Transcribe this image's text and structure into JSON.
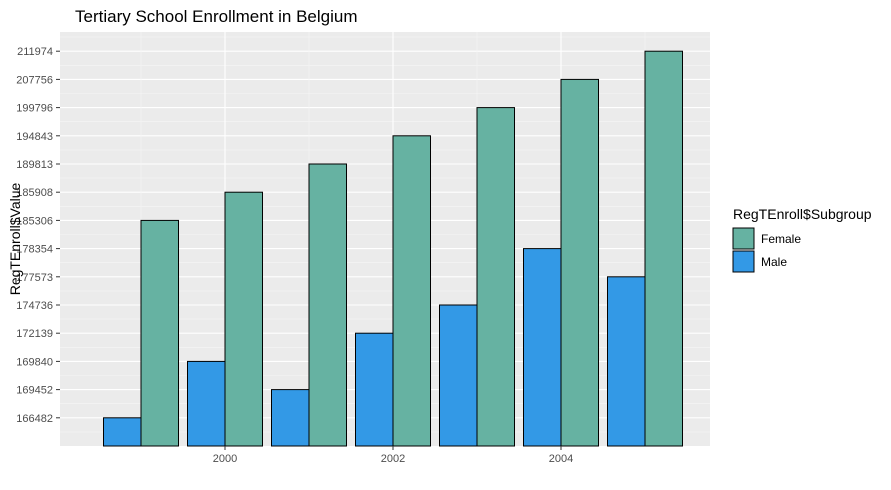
{
  "chart_data": {
    "type": "bar",
    "title": "Tertiary School Enrollment in Belgium",
    "xlabel": "",
    "ylabel": "RegTEnroll$Value",
    "x": [
      1999,
      2000,
      2001,
      2002,
      2003,
      2004,
      2005
    ],
    "x_tick_labels": [
      "2000",
      "2002",
      "2004"
    ],
    "y_tick_labels": [
      "166482",
      "169452",
      "169840",
      "172139",
      "174736",
      "177573",
      "178354",
      "185306",
      "185908",
      "189813",
      "194843",
      "199796",
      "207756",
      "211974"
    ],
    "legend": {
      "title": "RegTEnroll$Subgroup",
      "position": "right"
    },
    "grid": true,
    "series": [
      {
        "name": "Male",
        "color": "#3399e6",
        "values": [
          166482,
          169840,
          169452,
          172139,
          174736,
          178354,
          177573
        ]
      },
      {
        "name": "Female",
        "color": "#66b2a2",
        "values": [
          185306,
          185908,
          189813,
          194843,
          199796,
          207756,
          211974
        ]
      }
    ]
  }
}
